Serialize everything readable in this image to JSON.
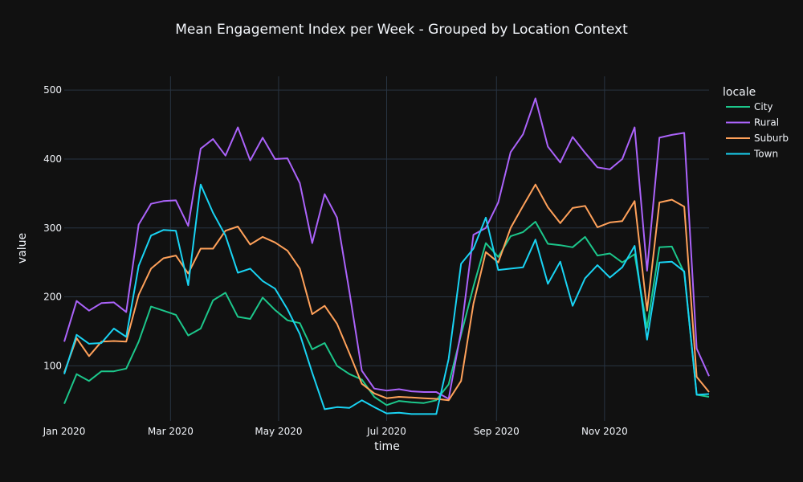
{
  "chart_data": {
    "type": "line",
    "title": "Mean Engagement Index per Week - Grouped by Location Context",
    "xlabel": "time",
    "ylabel": "value",
    "legend_title": "locale",
    "legend_position": "top-right",
    "grid": true,
    "x_ticks": [
      {
        "date": "2020-01-01",
        "label": "Jan 2020"
      },
      {
        "date": "2020-03-01",
        "label": "Mar 2020"
      },
      {
        "date": "2020-05-01",
        "label": "May 2020"
      },
      {
        "date": "2020-07-01",
        "label": "Jul 2020"
      },
      {
        "date": "2020-09-01",
        "label": "Sep 2020"
      },
      {
        "date": "2020-11-01",
        "label": "Nov 2020"
      }
    ],
    "y_ticks": [
      100,
      200,
      300,
      400,
      500
    ],
    "xlim": [
      "2020-01-01",
      "2020-12-30"
    ],
    "ylim": [
      20,
      520
    ],
    "x": [
      "2020-01-01",
      "2020-01-08",
      "2020-01-15",
      "2020-01-22",
      "2020-01-29",
      "2020-02-05",
      "2020-02-12",
      "2020-02-19",
      "2020-02-26",
      "2020-03-04",
      "2020-03-11",
      "2020-03-18",
      "2020-03-25",
      "2020-04-01",
      "2020-04-08",
      "2020-04-15",
      "2020-04-22",
      "2020-04-29",
      "2020-05-06",
      "2020-05-13",
      "2020-05-20",
      "2020-05-27",
      "2020-06-03",
      "2020-06-10",
      "2020-06-17",
      "2020-06-24",
      "2020-07-01",
      "2020-07-08",
      "2020-07-15",
      "2020-07-22",
      "2020-07-29",
      "2020-08-05",
      "2020-08-12",
      "2020-08-19",
      "2020-08-26",
      "2020-09-02",
      "2020-09-09",
      "2020-09-16",
      "2020-09-23",
      "2020-09-30",
      "2020-10-07",
      "2020-10-14",
      "2020-10-21",
      "2020-10-28",
      "2020-11-04",
      "2020-11-11",
      "2020-11-18",
      "2020-11-25",
      "2020-12-02",
      "2020-12-09",
      "2020-12-16",
      "2020-12-23",
      "2020-12-30"
    ],
    "series": [
      {
        "name": "City",
        "color": "#1cc78b",
        "values": [
          45,
          88,
          78,
          92,
          92,
          96,
          135,
          186,
          180,
          174,
          144,
          154,
          195,
          206,
          171,
          168,
          199,
          181,
          166,
          162,
          124,
          133,
          100,
          88,
          80,
          55,
          43,
          49,
          47,
          46,
          50,
          73,
          145,
          215,
          278,
          258,
          288,
          294,
          309,
          277,
          275,
          272,
          287,
          260,
          263,
          250,
          262,
          155,
          272,
          273,
          235,
          58,
          55
        ]
      },
      {
        "name": "Rural",
        "color": "#ab63fa",
        "values": [
          135,
          194,
          180,
          191,
          192,
          178,
          305,
          335,
          339,
          340,
          303,
          415,
          429,
          405,
          446,
          398,
          431,
          400,
          401,
          365,
          278,
          349,
          315,
          207,
          93,
          67,
          64,
          66,
          63,
          62,
          62,
          52,
          150,
          290,
          300,
          337,
          410,
          436,
          488,
          418,
          395,
          432,
          409,
          388,
          385,
          400,
          446,
          238,
          431,
          435,
          438,
          125,
          85
        ]
      },
      {
        "name": "Suburb",
        "color": "#ffa15a",
        "values": [
          90,
          140,
          114,
          135,
          136,
          135,
          203,
          241,
          256,
          260,
          234,
          270,
          270,
          296,
          302,
          276,
          287,
          279,
          267,
          241,
          175,
          187,
          161,
          118,
          74,
          60,
          53,
          55,
          54,
          53,
          52,
          50,
          78,
          190,
          265,
          250,
          300,
          332,
          363,
          330,
          307,
          329,
          332,
          301,
          308,
          310,
          339,
          180,
          337,
          341,
          331,
          84,
          62
        ]
      },
      {
        "name": "Town",
        "color": "#19d3f3",
        "values": [
          88,
          145,
          132,
          133,
          154,
          142,
          245,
          289,
          297,
          296,
          217,
          363,
          322,
          289,
          235,
          241,
          223,
          212,
          182,
          146,
          90,
          37,
          40,
          39,
          50,
          40,
          31,
          32,
          30,
          30,
          30,
          110,
          248,
          270,
          315,
          239,
          241,
          243,
          283,
          219,
          251,
          187,
          227,
          246,
          228,
          243,
          274,
          138,
          250,
          251,
          237,
          58,
          59
        ]
      }
    ]
  }
}
